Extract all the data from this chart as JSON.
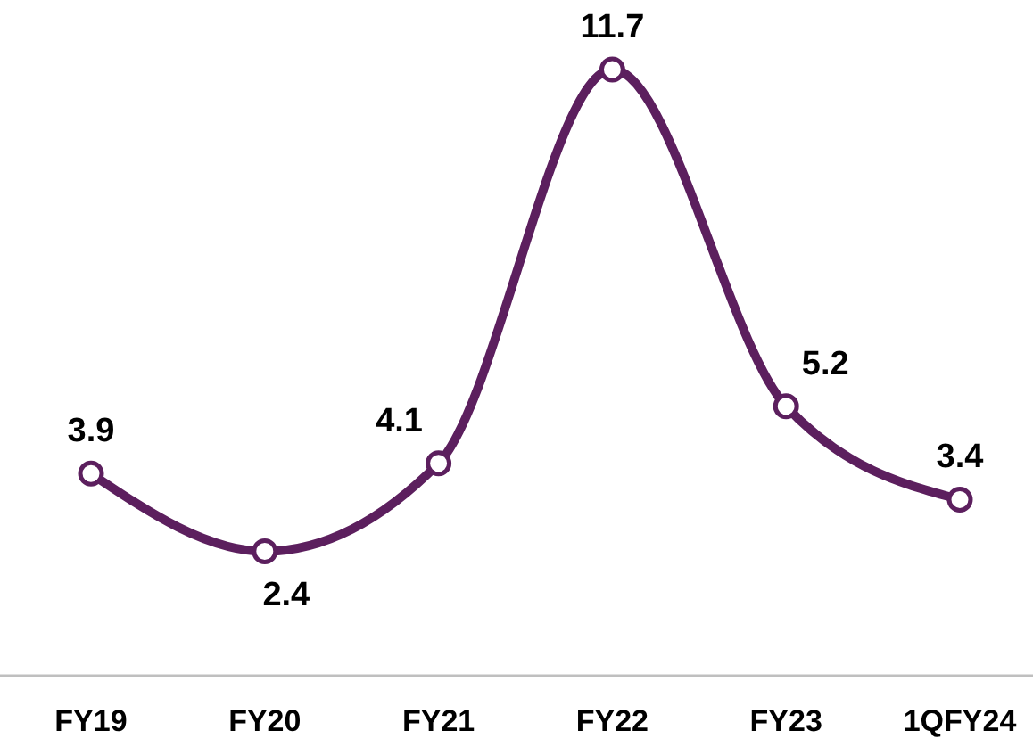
{
  "chart_data": {
    "type": "line",
    "categories": [
      "FY19",
      "FY20",
      "FY21",
      "FY22",
      "FY23",
      "1QFY24"
    ],
    "series": [
      {
        "color": "#5c1f5e",
        "values": [
          3.9,
          2.4,
          4.1,
          11.7,
          5.2,
          3.4
        ]
      }
    ],
    "data_labels": true,
    "marker": "circle",
    "line_style": "solid"
  }
}
